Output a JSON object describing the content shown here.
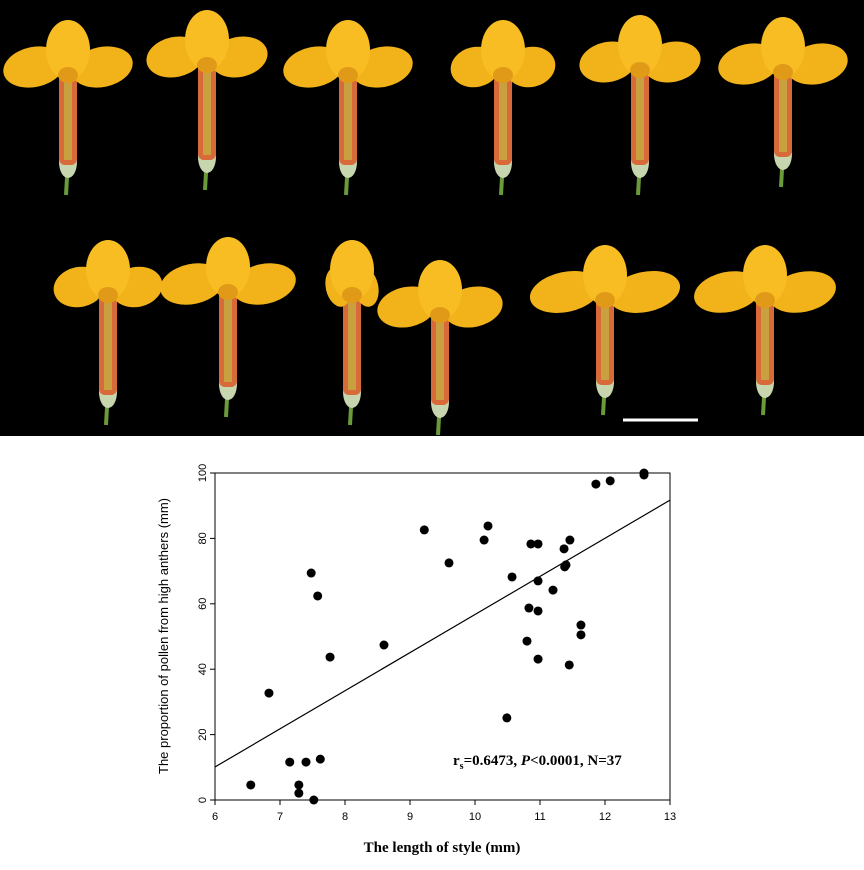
{
  "chart_data": {
    "type": "scatter",
    "xlabel": "The length of style (mm)",
    "ylabel": "The proportion of pollen from high anthers (mm)",
    "xlim": [
      6,
      13
    ],
    "xticks": [
      6,
      7,
      8,
      9,
      10,
      11,
      12,
      13
    ],
    "ylim": [
      0,
      100
    ],
    "yticks": [
      0,
      20,
      40,
      60,
      80,
      100
    ],
    "color": "#000000",
    "x": [
      6.55,
      6.83,
      7.15,
      7.29,
      7.29,
      7.4,
      7.48,
      7.52,
      7.58,
      7.62,
      7.77,
      8.6,
      9.22,
      9.6,
      10.14,
      10.2,
      10.49,
      10.57,
      10.8,
      10.83,
      10.86,
      10.97,
      10.97,
      10.97,
      10.97,
      11.2,
      11.37,
      11.46,
      11.38,
      11.4,
      11.45,
      11.63,
      11.63,
      11.86,
      12.08,
      12.6,
      12.6
    ],
    "y": [
      4.6,
      32.7,
      11.6,
      4.6,
      2.1,
      11.6,
      69.4,
      0,
      62.4,
      12.5,
      43.7,
      47.4,
      82.6,
      72.5,
      79.5,
      83.8,
      25.1,
      68.2,
      48.6,
      58.7,
      78.3,
      78.3,
      67.0,
      57.8,
      43.1,
      64.2,
      76.8,
      79.5,
      71.3,
      71.9,
      41.3,
      53.5,
      50.5,
      96.6,
      97.6,
      100,
      99.4
    ],
    "trend_line": {
      "x": [
        6,
        13
      ],
      "y": [
        10.1,
        91.7
      ]
    },
    "annotation": {
      "symbol": "r",
      "subscript": "s",
      "text1": "=0.6473, ",
      "italic": "P",
      "text2": "<0.0001, N=37"
    }
  }
}
